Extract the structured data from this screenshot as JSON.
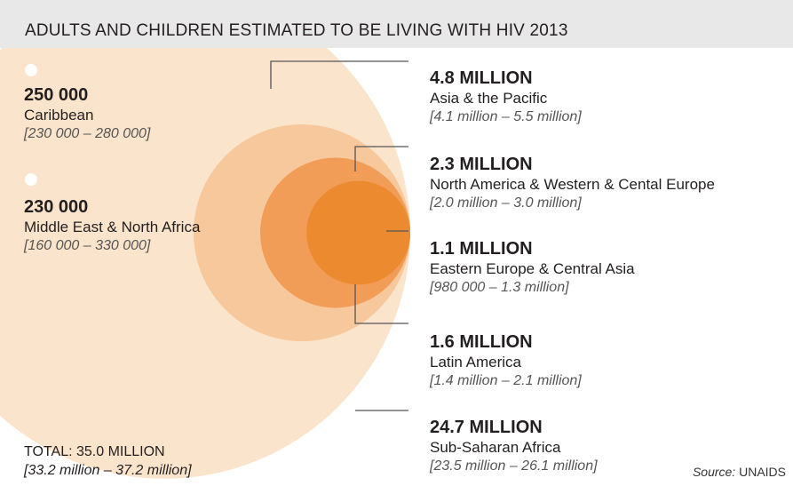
{
  "title": "ADULTS AND CHILDREN ESTIMATED TO BE LIVING WITH HIV 2013",
  "chart_data": {
    "type": "bubble",
    "unit": "people living with HIV",
    "series": [
      {
        "value_label": "4.8 MILLION",
        "region": "Asia & the Pacific",
        "range": "[4.1 million – 5.5 million]",
        "value": 4800000
      },
      {
        "value_label": "2.3 MILLION",
        "region": "North America & Western & Cental Europe",
        "range": "[2.0 million – 3.0 million]",
        "value": 2300000
      },
      {
        "value_label": "1.1 MILLION",
        "region": "Eastern Europe & Central Asia",
        "range": "[980 000 – 1.3 million]",
        "value": 1100000
      },
      {
        "value_label": "1.6 MILLION",
        "region": "Latin America",
        "range": "[1.4 million – 2.1 million]",
        "value": 1600000
      },
      {
        "value_label": "24.7 MILLION",
        "region": "Sub-Saharan Africa",
        "range": "[23.5 million – 26.1 million]",
        "value": 24700000
      },
      {
        "value_label": "250 000",
        "region": "Caribbean",
        "range": "[230 000 – 280 000]",
        "value": 250000
      },
      {
        "value_label": "230 000",
        "region": "Middle East & North Africa",
        "range": "[160 000 – 330 000]",
        "value": 230000
      }
    ],
    "total": {
      "label": "TOTAL: 35.0 MILLION",
      "range": "[33.2 million – 37.2 million]",
      "value": 35000000
    }
  },
  "colors": {
    "header": "#e8e8e8",
    "sub_saharan": "#fbe4cc",
    "asia": "#f7c89b",
    "latin_america": "#f4b27a",
    "na_europe": "#f19c57",
    "ee_ca": "#ec8a30",
    "small_dots": "#ffffff",
    "leader": "#555555"
  },
  "source": {
    "prefix": "Source:",
    "name": "UNAIDS"
  }
}
